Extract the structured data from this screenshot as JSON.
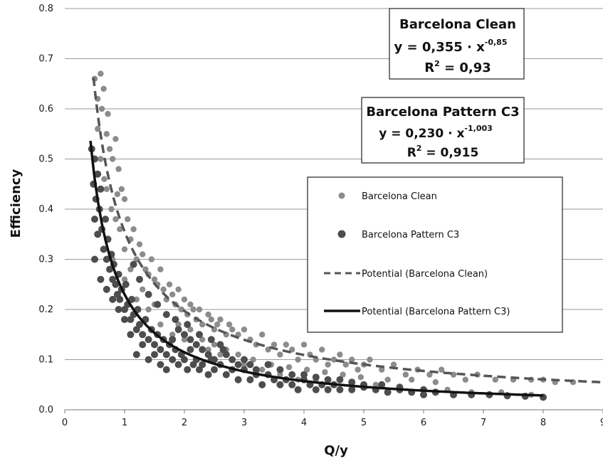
{
  "chart_data": {
    "type": "scatter",
    "xlabel": "Q/y",
    "ylabel": "Efficiency",
    "xlim": [
      0,
      9
    ],
    "ylim": [
      0,
      0.8
    ],
    "xticks": [
      "0",
      "1",
      "2",
      "3",
      "4",
      "5",
      "6",
      "7",
      "8",
      "9"
    ],
    "yticks": [
      "0.0",
      "0.1",
      "0.2",
      "0.3",
      "0.4",
      "0.5",
      "0.6",
      "0.7",
      "0.8"
    ],
    "grid": "horizontal",
    "legend_position": "center-right",
    "series": [
      {
        "name": "Barcelona Clean",
        "kind": "points",
        "color": "#8c8c8c",
        "points": [
          [
            0.5,
            0.66
          ],
          [
            0.55,
            0.62
          ],
          [
            0.6,
            0.67
          ],
          [
            0.62,
            0.6
          ],
          [
            0.65,
            0.64
          ],
          [
            0.7,
            0.55
          ],
          [
            0.72,
            0.59
          ],
          [
            0.55,
            0.56
          ],
          [
            0.6,
            0.5
          ],
          [
            0.66,
            0.46
          ],
          [
            0.75,
            0.52
          ],
          [
            0.8,
            0.5
          ],
          [
            0.85,
            0.54
          ],
          [
            0.9,
            0.48
          ],
          [
            0.95,
            0.44
          ],
          [
            0.7,
            0.44
          ],
          [
            0.78,
            0.4
          ],
          [
            0.85,
            0.38
          ],
          [
            0.88,
            0.43
          ],
          [
            0.92,
            0.36
          ],
          [
            1.0,
            0.42
          ],
          [
            1.05,
            0.38
          ],
          [
            1.1,
            0.34
          ],
          [
            1.15,
            0.36
          ],
          [
            1.0,
            0.32
          ],
          [
            1.2,
            0.3
          ],
          [
            1.25,
            0.33
          ],
          [
            1.3,
            0.31
          ],
          [
            1.35,
            0.28
          ],
          [
            1.4,
            0.27
          ],
          [
            1.45,
            0.3
          ],
          [
            1.5,
            0.26
          ],
          [
            1.55,
            0.25
          ],
          [
            1.6,
            0.28
          ],
          [
            1.65,
            0.24
          ],
          [
            1.7,
            0.22
          ],
          [
            1.75,
            0.25
          ],
          [
            1.8,
            0.23
          ],
          [
            1.85,
            0.21
          ],
          [
            1.9,
            0.24
          ],
          [
            1.95,
            0.2
          ],
          [
            2.0,
            0.22
          ],
          [
            2.05,
            0.19
          ],
          [
            2.1,
            0.21
          ],
          [
            2.15,
            0.2
          ],
          [
            2.2,
            0.18
          ],
          [
            2.25,
            0.2
          ],
          [
            2.3,
            0.17
          ],
          [
            2.4,
            0.19
          ],
          [
            2.45,
            0.18
          ],
          [
            2.5,
            0.16
          ],
          [
            2.55,
            0.17
          ],
          [
            2.6,
            0.18
          ],
          [
            2.7,
            0.15
          ],
          [
            2.75,
            0.17
          ],
          [
            2.8,
            0.16
          ],
          [
            2.9,
            0.15
          ],
          [
            3.0,
            0.16
          ],
          [
            3.1,
            0.14
          ],
          [
            3.2,
            0.13
          ],
          [
            3.3,
            0.15
          ],
          [
            3.4,
            0.12
          ],
          [
            3.5,
            0.13
          ],
          [
            3.6,
            0.11
          ],
          [
            3.7,
            0.13
          ],
          [
            3.8,
            0.12
          ],
          [
            3.9,
            0.1
          ],
          [
            4.0,
            0.13
          ],
          [
            4.1,
            0.11
          ],
          [
            4.2,
            0.1
          ],
          [
            4.3,
            0.12
          ],
          [
            4.4,
            0.09
          ],
          [
            4.5,
            0.1
          ],
          [
            4.6,
            0.11
          ],
          [
            4.7,
            0.09
          ],
          [
            4.8,
            0.1
          ],
          [
            4.9,
            0.08
          ],
          [
            5.0,
            0.09
          ],
          [
            5.1,
            0.1
          ],
          [
            5.3,
            0.08
          ],
          [
            5.5,
            0.09
          ],
          [
            5.7,
            0.07
          ],
          [
            5.9,
            0.08
          ],
          [
            6.1,
            0.07
          ],
          [
            6.3,
            0.08
          ],
          [
            6.5,
            0.07
          ],
          [
            6.7,
            0.06
          ],
          [
            6.9,
            0.07
          ],
          [
            7.2,
            0.06
          ],
          [
            7.5,
            0.06
          ],
          [
            7.8,
            0.06
          ],
          [
            8.0,
            0.06
          ],
          [
            8.2,
            0.055
          ],
          [
            8.5,
            0.055
          ],
          [
            0.8,
            0.3
          ],
          [
            1.0,
            0.26
          ],
          [
            1.2,
            0.22
          ],
          [
            1.4,
            0.2
          ],
          [
            1.6,
            0.17
          ],
          [
            1.8,
            0.15
          ],
          [
            2.0,
            0.14
          ],
          [
            2.2,
            0.13
          ],
          [
            2.4,
            0.12
          ],
          [
            2.6,
            0.11
          ],
          [
            2.8,
            0.1
          ],
          [
            3.0,
            0.09
          ],
          [
            3.3,
            0.08
          ],
          [
            3.6,
            0.07
          ],
          [
            3.9,
            0.06
          ],
          [
            4.2,
            0.06
          ],
          [
            4.5,
            0.05
          ],
          [
            4.8,
            0.05
          ],
          [
            5.2,
            0.05
          ],
          [
            5.6,
            0.04
          ],
          [
            6.0,
            0.04
          ],
          [
            6.4,
            0.04
          ],
          [
            6.8,
            0.035
          ],
          [
            7.3,
            0.035
          ],
          [
            7.8,
            0.03
          ],
          [
            1.1,
            0.28
          ],
          [
            1.3,
            0.24
          ],
          [
            1.5,
            0.21
          ],
          [
            1.7,
            0.19
          ],
          [
            1.9,
            0.17
          ],
          [
            2.1,
            0.16
          ],
          [
            2.3,
            0.14
          ],
          [
            2.5,
            0.13
          ],
          [
            2.7,
            0.12
          ],
          [
            2.9,
            0.11
          ],
          [
            3.15,
            0.1
          ],
          [
            3.45,
            0.09
          ],
          [
            3.75,
            0.085
          ],
          [
            4.05,
            0.08
          ],
          [
            4.35,
            0.075
          ],
          [
            4.65,
            0.07
          ],
          [
            4.95,
            0.065
          ],
          [
            5.4,
            0.06
          ],
          [
            5.8,
            0.06
          ],
          [
            6.2,
            0.055
          ]
        ]
      },
      {
        "name": "Barcelona Pattern C3",
        "kind": "points",
        "color": "#4d4d4d",
        "points": [
          [
            0.45,
            0.52
          ],
          [
            0.48,
            0.45
          ],
          [
            0.5,
            0.5
          ],
          [
            0.52,
            0.42
          ],
          [
            0.55,
            0.47
          ],
          [
            0.5,
            0.38
          ],
          [
            0.55,
            0.35
          ],
          [
            0.58,
            0.4
          ],
          [
            0.6,
            0.44
          ],
          [
            0.62,
            0.36
          ],
          [
            0.65,
            0.32
          ],
          [
            0.68,
            0.38
          ],
          [
            0.7,
            0.3
          ],
          [
            0.72,
            0.34
          ],
          [
            0.75,
            0.28
          ],
          [
            0.78,
            0.31
          ],
          [
            0.8,
            0.26
          ],
          [
            0.82,
            0.29
          ],
          [
            0.85,
            0.25
          ],
          [
            0.88,
            0.23
          ],
          [
            0.9,
            0.27
          ],
          [
            0.92,
            0.22
          ],
          [
            0.95,
            0.24
          ],
          [
            1.0,
            0.2
          ],
          [
            1.02,
            0.25
          ],
          [
            1.05,
            0.21
          ],
          [
            1.1,
            0.18
          ],
          [
            1.12,
            0.22
          ],
          [
            1.15,
            0.19
          ],
          [
            1.2,
            0.16
          ],
          [
            1.22,
            0.2
          ],
          [
            1.25,
            0.17
          ],
          [
            1.3,
            0.15
          ],
          [
            1.35,
            0.18
          ],
          [
            1.4,
            0.14
          ],
          [
            1.45,
            0.16
          ],
          [
            1.5,
            0.13
          ],
          [
            1.55,
            0.15
          ],
          [
            1.6,
            0.12
          ],
          [
            1.65,
            0.14
          ],
          [
            1.7,
            0.11
          ],
          [
            1.75,
            0.13
          ],
          [
            1.8,
            0.1
          ],
          [
            1.85,
            0.12
          ],
          [
            1.9,
            0.09
          ],
          [
            1.95,
            0.11
          ],
          [
            2.0,
            0.1
          ],
          [
            2.05,
            0.08
          ],
          [
            2.1,
            0.12
          ],
          [
            2.15,
            0.09
          ],
          [
            2.2,
            0.1
          ],
          [
            2.25,
            0.08
          ],
          [
            2.3,
            0.09
          ],
          [
            2.4,
            0.07
          ],
          [
            2.45,
            0.1
          ],
          [
            2.5,
            0.08
          ],
          [
            2.6,
            0.09
          ],
          [
            2.7,
            0.07
          ],
          [
            2.8,
            0.08
          ],
          [
            2.9,
            0.06
          ],
          [
            3.0,
            0.08
          ],
          [
            3.1,
            0.06
          ],
          [
            3.2,
            0.07
          ],
          [
            3.3,
            0.05
          ],
          [
            3.4,
            0.07
          ],
          [
            3.5,
            0.06
          ],
          [
            3.6,
            0.05
          ],
          [
            3.7,
            0.06
          ],
          [
            3.8,
            0.05
          ],
          [
            3.9,
            0.04
          ],
          [
            4.0,
            0.06
          ],
          [
            4.1,
            0.05
          ],
          [
            4.2,
            0.04
          ],
          [
            4.3,
            0.05
          ],
          [
            4.4,
            0.04
          ],
          [
            4.5,
            0.05
          ],
          [
            4.6,
            0.04
          ],
          [
            4.8,
            0.04
          ],
          [
            5.0,
            0.045
          ],
          [
            5.2,
            0.04
          ],
          [
            5.4,
            0.035
          ],
          [
            5.6,
            0.04
          ],
          [
            5.8,
            0.035
          ],
          [
            6.0,
            0.03
          ],
          [
            6.2,
            0.035
          ],
          [
            6.5,
            0.03
          ],
          [
            6.8,
            0.03
          ],
          [
            7.1,
            0.03
          ],
          [
            7.4,
            0.028
          ],
          [
            7.7,
            0.027
          ],
          [
            8.0,
            0.025
          ],
          [
            0.5,
            0.3
          ],
          [
            0.6,
            0.26
          ],
          [
            0.7,
            0.24
          ],
          [
            0.8,
            0.22
          ],
          [
            0.9,
            0.2
          ],
          [
            1.0,
            0.18
          ],
          [
            1.1,
            0.15
          ],
          [
            1.2,
            0.11
          ],
          [
            1.3,
            0.13
          ],
          [
            1.4,
            0.1
          ],
          [
            1.5,
            0.11
          ],
          [
            1.6,
            0.09
          ],
          [
            1.7,
            0.08
          ],
          [
            1.8,
            0.14
          ],
          [
            1.9,
            0.16
          ],
          [
            2.0,
            0.15
          ],
          [
            2.1,
            0.14
          ],
          [
            2.2,
            0.13
          ],
          [
            2.3,
            0.12
          ],
          [
            2.4,
            0.11
          ],
          [
            2.5,
            0.1
          ],
          [
            2.6,
            0.13
          ],
          [
            2.7,
            0.11
          ],
          [
            2.8,
            0.1
          ],
          [
            2.9,
            0.09
          ],
          [
            3.0,
            0.1
          ],
          [
            3.1,
            0.09
          ],
          [
            3.2,
            0.08
          ],
          [
            3.4,
            0.09
          ],
          [
            3.6,
            0.08
          ],
          [
            3.8,
            0.07
          ],
          [
            4.0,
            0.07
          ],
          [
            4.2,
            0.065
          ],
          [
            4.4,
            0.06
          ],
          [
            4.6,
            0.06
          ],
          [
            4.8,
            0.055
          ],
          [
            5.0,
            0.05
          ],
          [
            5.3,
            0.05
          ],
          [
            5.6,
            0.045
          ],
          [
            6.0,
            0.04
          ],
          [
            1.15,
            0.29
          ],
          [
            1.25,
            0.26
          ],
          [
            1.4,
            0.23
          ],
          [
            1.55,
            0.21
          ],
          [
            1.7,
            0.19
          ],
          [
            1.85,
            0.18
          ],
          [
            2.05,
            0.17
          ],
          [
            2.25,
            0.15
          ],
          [
            2.45,
            0.14
          ],
          [
            2.65,
            0.12
          ]
        ]
      },
      {
        "name": "Potential (Barcelona Clean)",
        "kind": "fit",
        "coef": 0.355,
        "exponent": -0.85,
        "x_range": [
          0.48,
          9
        ],
        "style": "dashed",
        "color": "#555555"
      },
      {
        "name": "Potential (Barcelona Pattern C3)",
        "kind": "fit",
        "coef": 0.23,
        "exponent": -1.003,
        "x_range": [
          0.43,
          8
        ],
        "style": "solid",
        "color": "#111111"
      }
    ],
    "annotations": [
      {
        "title": "Barcelona Clean",
        "equation_base": "y  =  0,355 · x",
        "equation_exp": "-0,85",
        "r2_label": "R",
        "r2_sup": "2",
        "r2_value": "  =  0,93"
      },
      {
        "title": "Barcelona Pattern C3",
        "equation_base": "y = 0,230 · x",
        "equation_exp": "-1,003",
        "r2_label": "R",
        "r2_sup": "2",
        "r2_value": " = 0,915"
      }
    ]
  }
}
